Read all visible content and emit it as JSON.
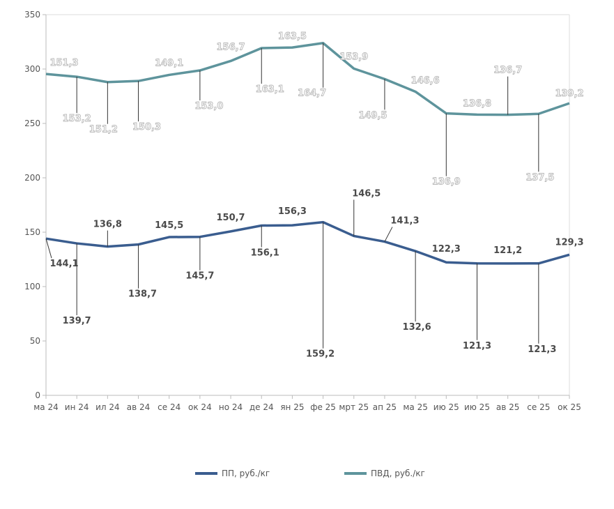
{
  "chart_data": {
    "type": "line",
    "stacked": true,
    "title": "",
    "xlabel": "",
    "ylabel": "",
    "ylim": [
      0,
      350
    ],
    "yticks": [
      0,
      50,
      100,
      150,
      200,
      250,
      300,
      350
    ],
    "grid": false,
    "legend_position": "bottom",
    "categories": [
      "ма 24",
      "ин 24",
      "ил 24",
      "ав 24",
      "се 24",
      "ок 24",
      "но 24",
      "де 24",
      "ян 25",
      "фе 25",
      "мрт 25",
      "ап 25",
      "ма 25",
      "ию 25",
      "ию 25",
      "ав 25",
      "се 25",
      "ок 25"
    ],
    "series": [
      {
        "name": "ПП, руб./кг",
        "color": "#3a5d8f",
        "values": [
          144.1,
          139.7,
          136.8,
          138.7,
          145.5,
          145.7,
          150.7,
          156.1,
          156.3,
          159.2,
          146.5,
          141.3,
          132.6,
          122.3,
          121.3,
          121.2,
          121.3,
          129.3
        ],
        "labels": [
          "144,1",
          "139,7",
          "136,8",
          "138,7",
          "145,5",
          "145,7",
          "150,7",
          "156,1",
          "156,3",
          "159,2",
          "146,5",
          "141,3",
          "132,6",
          "122,3",
          "121,3",
          "121,2",
          "121,3",
          "129,3"
        ]
      },
      {
        "name": "ПВД, руб./кг",
        "color": "#5e949c",
        "values": [
          151.3,
          153.2,
          151.2,
          150.3,
          149.1,
          153.0,
          156.7,
          163.1,
          163.5,
          164.7,
          153.9,
          149.5,
          146.6,
          136.9,
          136.8,
          136.7,
          137.5,
          139.2
        ],
        "labels": [
          "151,3",
          "153,2",
          "151,2",
          "150,3",
          "149,1",
          "153,0",
          "156,7",
          "163,1",
          "163,5",
          "164,7",
          "153,9",
          "149,5",
          "146,6",
          "136,9",
          "136,8",
          "136,7",
          "137,5",
          "139,2"
        ]
      }
    ]
  },
  "legend": {
    "items": [
      "ПП, руб./кг",
      "ПВД, руб./кг"
    ]
  }
}
